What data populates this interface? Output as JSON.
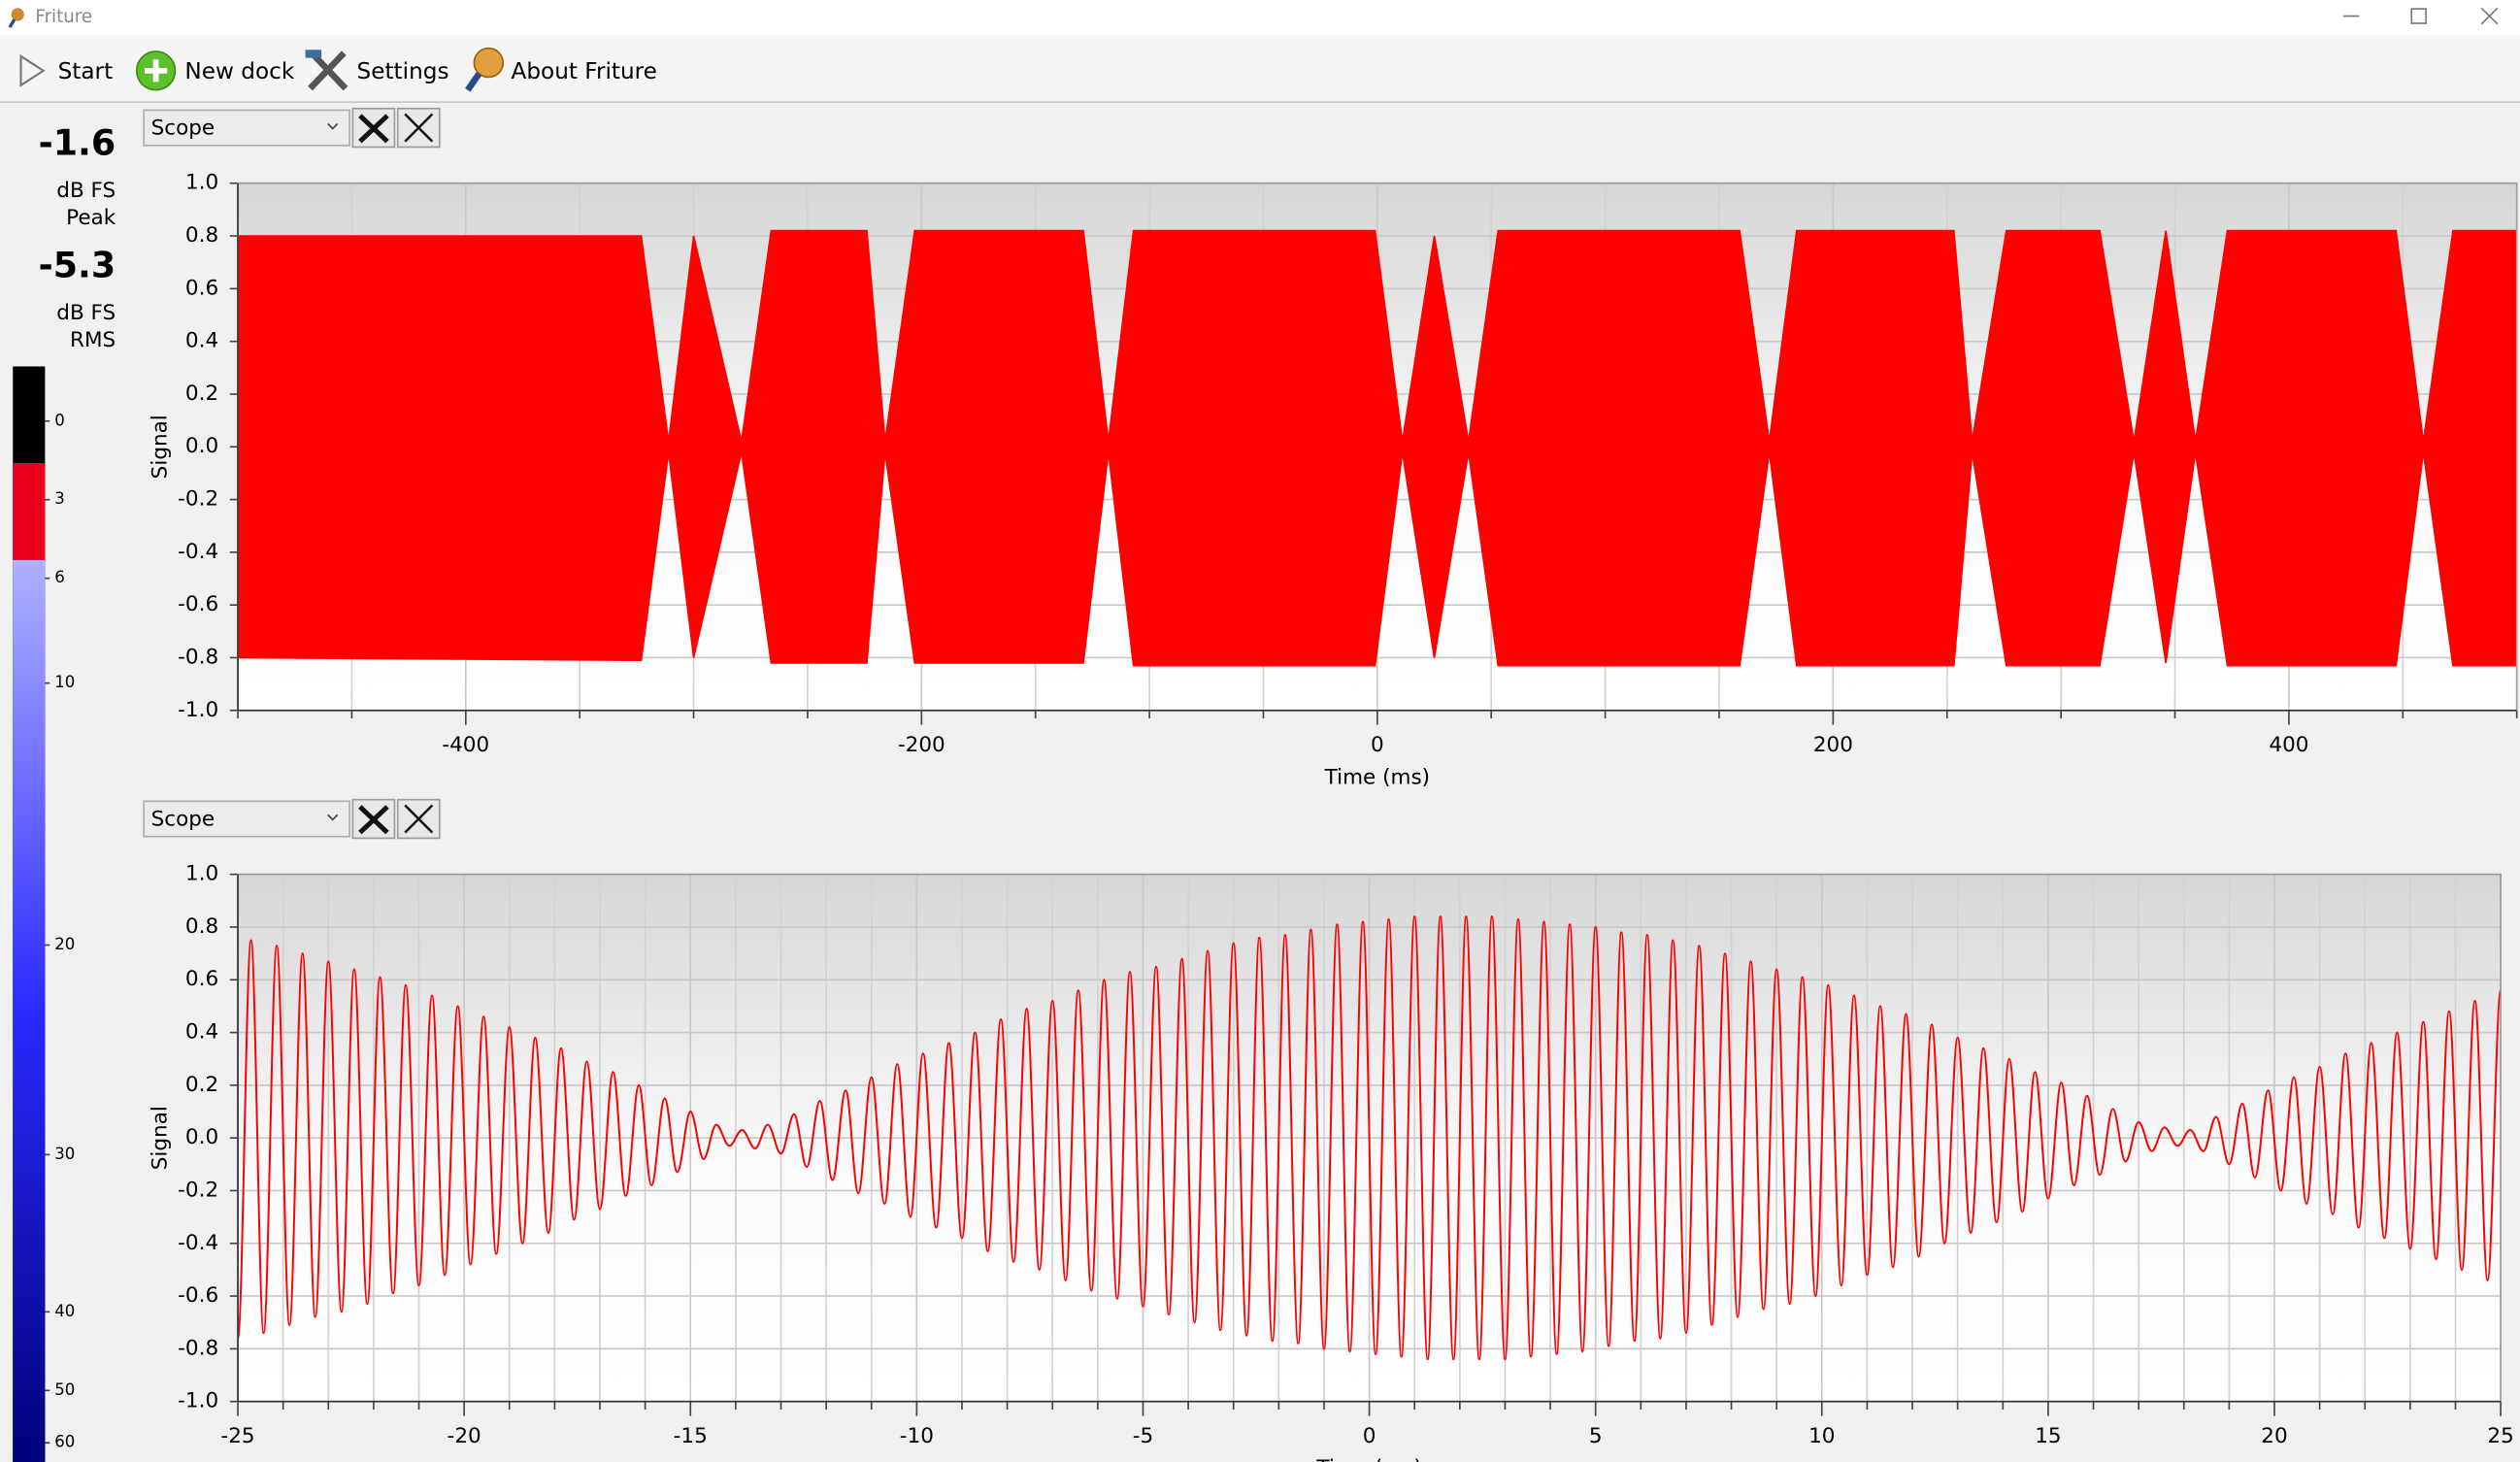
{
  "window": {
    "title": "Friture"
  },
  "toolbar": [
    "Start",
    "New dock",
    "Settings",
    "About Friture"
  ],
  "meter": {
    "peak": -1.6,
    "peak_unit": "dB FS",
    "peak_label": "Peak",
    "rms": -5.3,
    "rms_unit": "dB FS",
    "rms_label": "RMS",
    "ticks": [
      0,
      3,
      6,
      10,
      20,
      30,
      40,
      50,
      60
    ]
  },
  "docks": [
    {
      "selector": "Scope"
    },
    {
      "selector": "Scope"
    }
  ],
  "chart_data": [
    {
      "type": "area",
      "xlabel": "Time (ms)",
      "ylabel": "Signal",
      "x": [
        -500,
        -323,
        -311,
        -300,
        -279,
        -266,
        -224,
        -216,
        -203,
        -129,
        -118,
        -107,
        -1,
        11,
        25,
        40,
        53,
        159,
        172,
        184,
        253,
        261,
        276,
        317,
        332,
        346,
        359,
        373,
        447,
        459,
        472,
        500
      ],
      "series": [
        {
          "color": "#ff0000",
          "values": [
            0.8,
            0.8,
            0.02,
            0.8,
            0.02,
            0.82,
            0.82,
            0.02,
            0.82,
            0.82,
            0.02,
            0.82,
            0.82,
            0.02,
            0.8,
            0.02,
            0.82,
            0.82,
            0.02,
            0.82,
            0.82,
            0.02,
            0.82,
            0.82,
            0.02,
            0.82,
            0.02,
            0.82,
            0.82,
            0.02,
            0.82,
            0.82
          ]
        },
        {
          "color": "#ff0000",
          "values": [
            -0.8,
            -0.81,
            -0.02,
            -0.8,
            -0.02,
            -0.82,
            -0.82,
            -0.02,
            -0.82,
            -0.82,
            -0.02,
            -0.83,
            -0.83,
            -0.02,
            -0.8,
            -0.02,
            -0.83,
            -0.83,
            -0.02,
            -0.83,
            -0.83,
            -0.02,
            -0.83,
            -0.83,
            -0.02,
            -0.82,
            -0.02,
            -0.83,
            -0.83,
            -0.02,
            -0.83,
            -0.83
          ]
        }
      ],
      "xlim": [
        -500,
        500
      ],
      "xticks": [
        -400,
        -200,
        0,
        200,
        400
      ],
      "x_minor_divisions": 4,
      "ylim": [
        -1,
        1
      ],
      "yticks": [
        {
          "value": -1,
          "label": "-1.0"
        },
        -0.8,
        -0.6,
        -0.4,
        -0.2,
        {
          "value": 0,
          "label": "0.0"
        },
        0.2,
        0.4,
        0.6,
        0.8,
        {
          "value": 1,
          "label": "1.0"
        }
      ],
      "grid": true
    },
    {
      "type": "line",
      "xlabel": "Time (ms)",
      "ylabel": "Signal",
      "x": [
        -25,
        -24.71,
        -24.43,
        -24.14,
        -23.86,
        -23.57,
        -23.29,
        -23,
        -22.71,
        -22.43,
        -22.14,
        -21.86,
        -21.57,
        -21.29,
        -21,
        -20.71,
        -20.43,
        -20.14,
        -19.86,
        -19.57,
        -19.29,
        -19,
        -18.71,
        -18.43,
        -18.14,
        -17.86,
        -17.57,
        -17.29,
        -17,
        -16.71,
        -16.43,
        -16.14,
        -15.86,
        -15.57,
        -15.29,
        -15,
        -14.71,
        -14.43,
        -14.14,
        -13.86,
        -13.57,
        -13.29,
        -13,
        -12.71,
        -12.43,
        -12.14,
        -11.86,
        -11.57,
        -11.29,
        -11,
        -10.71,
        -10.43,
        -10.14,
        -9.86,
        -9.57,
        -9.29,
        -9,
        -8.71,
        -8.43,
        -8.14,
        -7.86,
        -7.57,
        -7.29,
        -7,
        -6.71,
        -6.43,
        -6.14,
        -5.86,
        -5.57,
        -5.29,
        -5,
        -4.71,
        -4.43,
        -4.14,
        -3.86,
        -3.57,
        -3.29,
        -3,
        -2.71,
        -2.43,
        -2.14,
        -1.86,
        -1.57,
        -1.29,
        -1,
        -0.71,
        -0.43,
        -0.14,
        0.14,
        0.43,
        0.71,
        1,
        1.29,
        1.57,
        1.86,
        2.14,
        2.43,
        2.71,
        3,
        3.29,
        3.57,
        3.86,
        4.14,
        4.43,
        4.71,
        5,
        5.29,
        5.57,
        5.86,
        6.14,
        6.43,
        6.71,
        7,
        7.29,
        7.57,
        7.86,
        8.14,
        8.43,
        8.71,
        9,
        9.29,
        9.57,
        9.86,
        10.14,
        10.43,
        10.71,
        11,
        11.29,
        11.57,
        11.86,
        12.14,
        12.43,
        12.71,
        13,
        13.29,
        13.57,
        13.86,
        14.14,
        14.43,
        14.71,
        15,
        15.29,
        15.57,
        15.86,
        16.14,
        16.43,
        16.71,
        17,
        17.29,
        17.57,
        17.86,
        18.14,
        18.43,
        18.71,
        19,
        19.29,
        19.57,
        19.86,
        20.14,
        20.43,
        20.71,
        21,
        21.29,
        21.57,
        21.86,
        22.14,
        22.43,
        22.71,
        23,
        23.29,
        23.57,
        23.86,
        24.14,
        24.43,
        24.71,
        25
      ],
      "series": [
        {
          "color": "#ff0000",
          "values": [
            -0.76,
            0.75,
            -0.74,
            0.73,
            -0.71,
            0.7,
            -0.68,
            0.67,
            -0.66,
            0.64,
            -0.63,
            0.61,
            -0.59,
            0.58,
            -0.56,
            0.54,
            -0.52,
            0.5,
            -0.48,
            0.46,
            -0.44,
            0.42,
            -0.4,
            0.38,
            -0.36,
            0.34,
            -0.31,
            0.29,
            -0.27,
            0.25,
            -0.22,
            0.2,
            -0.18,
            0.15,
            -0.13,
            0.1,
            -0.08,
            0.05,
            -0.03,
            0.03,
            -0.04,
            0.05,
            -0.06,
            0.09,
            -0.11,
            0.14,
            -0.16,
            0.18,
            -0.21,
            0.23,
            -0.25,
            0.28,
            -0.3,
            0.32,
            -0.34,
            0.36,
            -0.38,
            0.4,
            -0.43,
            0.45,
            -0.47,
            0.49,
            -0.5,
            0.52,
            -0.54,
            0.56,
            -0.58,
            0.6,
            -0.61,
            0.63,
            -0.64,
            0.65,
            -0.67,
            0.68,
            -0.7,
            0.71,
            -0.73,
            0.74,
            -0.75,
            0.76,
            -0.77,
            0.77,
            -0.78,
            0.79,
            -0.8,
            0.81,
            -0.81,
            0.82,
            -0.82,
            0.83,
            -0.83,
            0.84,
            -0.84,
            0.84,
            -0.84,
            0.84,
            -0.84,
            0.84,
            -0.84,
            0.83,
            -0.83,
            0.82,
            -0.82,
            0.81,
            -0.81,
            0.8,
            -0.79,
            0.78,
            -0.77,
            0.77,
            -0.76,
            0.75,
            -0.74,
            0.73,
            -0.71,
            0.7,
            -0.68,
            0.67,
            -0.65,
            0.64,
            -0.63,
            0.61,
            -0.6,
            0.58,
            -0.56,
            0.54,
            -0.52,
            0.5,
            -0.49,
            0.47,
            -0.45,
            0.43,
            -0.4,
            0.38,
            -0.36,
            0.34,
            -0.32,
            0.3,
            -0.28,
            0.25,
            -0.23,
            0.21,
            -0.18,
            0.16,
            -0.14,
            0.11,
            -0.09,
            0.06,
            -0.05,
            0.04,
            -0.03,
            0.03,
            -0.05,
            0.08,
            -0.1,
            0.13,
            -0.15,
            0.18,
            -0.2,
            0.23,
            -0.25,
            0.27,
            -0.29,
            0.32,
            -0.34,
            0.36,
            -0.38,
            0.4,
            -0.42,
            0.44,
            -0.46,
            0.48,
            -0.5,
            0.52,
            -0.54,
            0.56
          ]
        }
      ],
      "xlim": [
        -25,
        25
      ],
      "xticks": [
        -25,
        -20,
        -15,
        -10,
        -5,
        0,
        5,
        10,
        15,
        20,
        25
      ],
      "x_minor_divisions": 5,
      "ylim": [
        -1,
        1
      ],
      "yticks": [
        {
          "value": -1,
          "label": "-1.0"
        },
        -0.8,
        -0.6,
        -0.4,
        -0.2,
        {
          "value": 0,
          "label": "0.0"
        },
        0.2,
        0.4,
        0.6,
        0.8,
        {
          "value": 1,
          "label": "1.0"
        }
      ],
      "grid": true
    }
  ]
}
